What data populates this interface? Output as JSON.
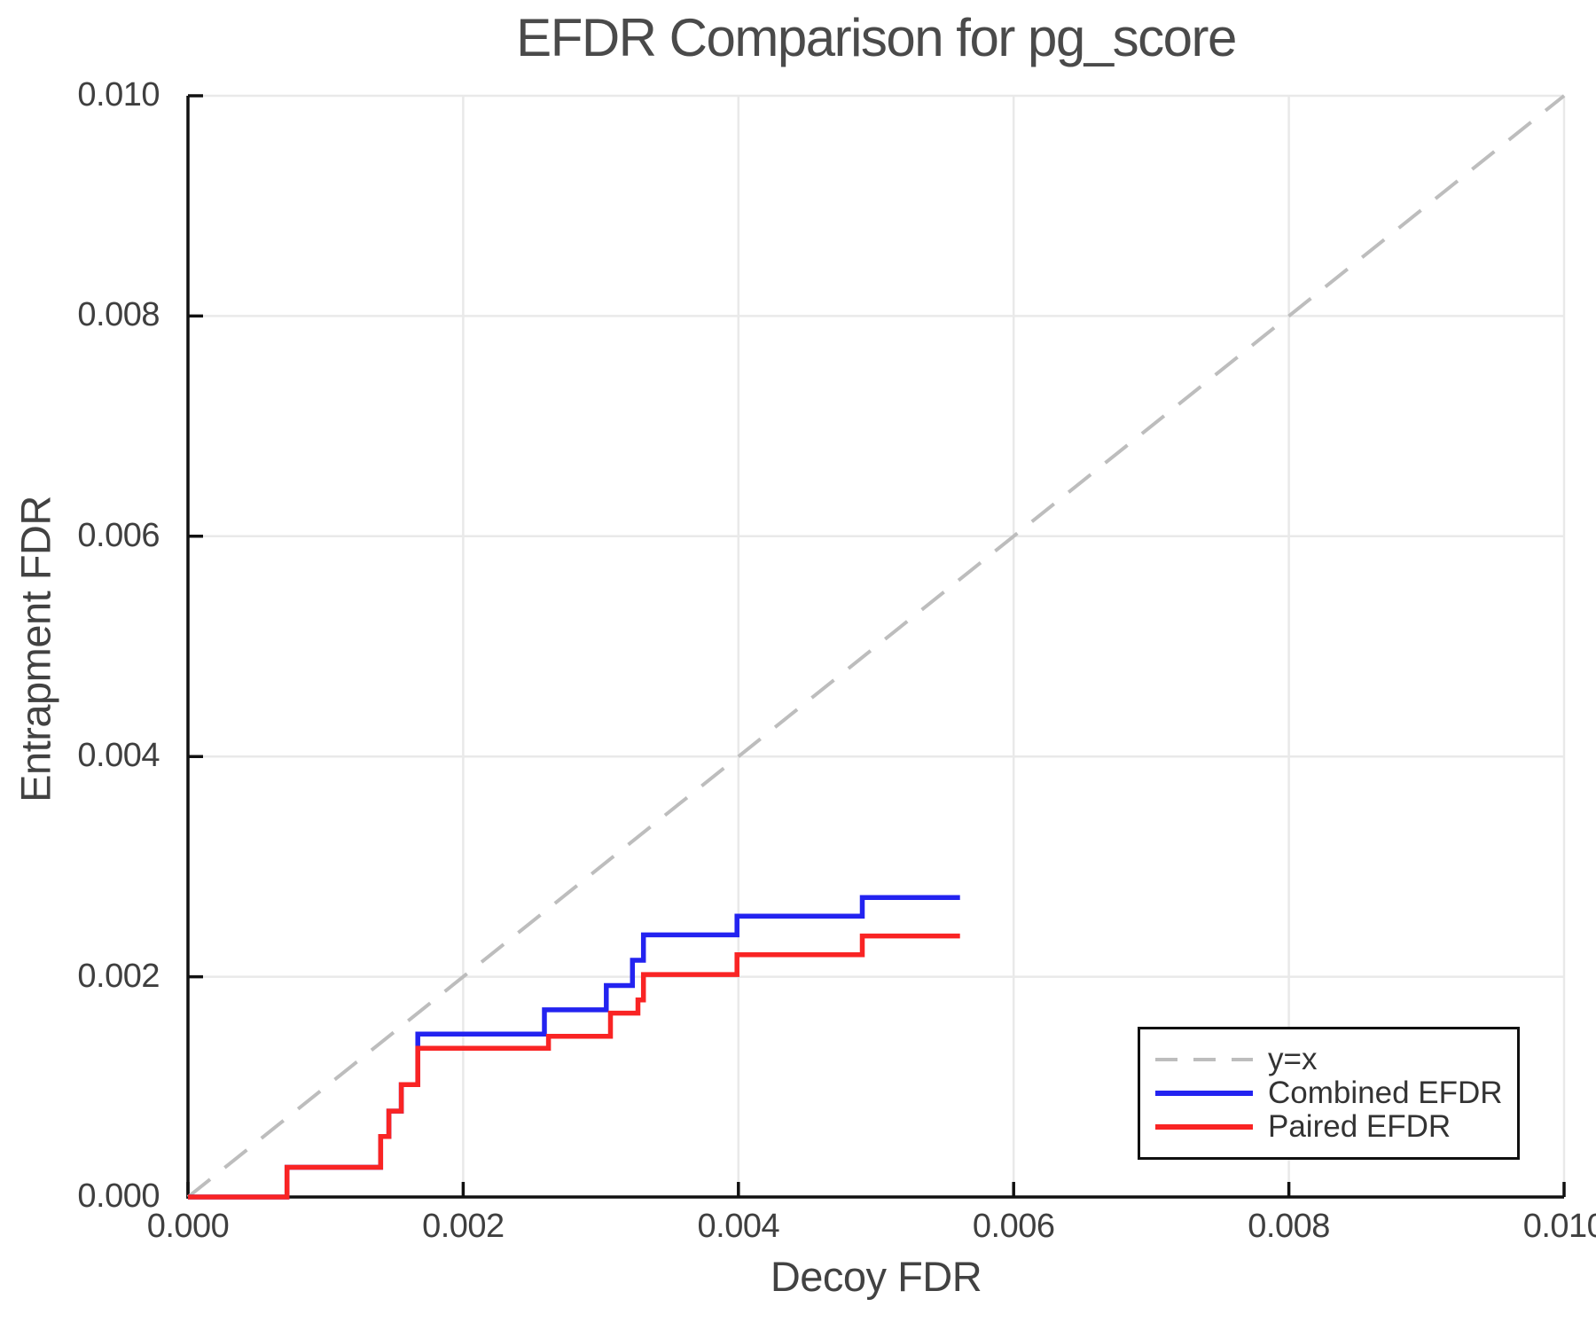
{
  "style": {
    "background": "#ffffff",
    "spine_color": "#111111",
    "grid_color": "#e9e9e9",
    "text_color": "#3f3f3f",
    "title_color": "#4a4a4a",
    "combined_color": "#2323f0",
    "paired_color": "#f92424",
    "identity_color": "#bdbdbd"
  },
  "chart_data": {
    "type": "line",
    "title": "EFDR Comparison for pg_score",
    "xlabel": "Decoy FDR",
    "ylabel": "Entrapment FDR",
    "xlim": [
      0,
      0.01
    ],
    "ylim": [
      0,
      0.01
    ],
    "xticks": [
      0,
      0.002,
      0.004,
      0.006,
      0.008,
      0.01
    ],
    "yticks": [
      0,
      0.002,
      0.004,
      0.006,
      0.008,
      0.01
    ],
    "xtick_labels": [
      "0.000",
      "0.002",
      "0.004",
      "0.006",
      "0.008",
      "0.010"
    ],
    "ytick_labels": [
      "0.000",
      "0.002",
      "0.004",
      "0.006",
      "0.008",
      "0.010"
    ],
    "grid": true,
    "legend_position": "lower-right",
    "series": [
      {
        "name": "y=x",
        "style": "dashed",
        "color": "#bdbdbd",
        "width": 4,
        "points": [
          [
            0,
            0
          ],
          [
            0.01,
            0.01
          ]
        ]
      },
      {
        "name": "Combined EFDR",
        "style": "solid",
        "color": "#2323f0",
        "width": 5.5,
        "points": [
          [
            0,
            0
          ],
          [
            0.00072,
            0
          ],
          [
            0.00072,
            0.00027
          ],
          [
            0.0014,
            0.00027
          ],
          [
            0.0014,
            0.00055
          ],
          [
            0.00146,
            0.00055
          ],
          [
            0.00146,
            0.00078
          ],
          [
            0.00155,
            0.00078
          ],
          [
            0.00155,
            0.00102
          ],
          [
            0.00167,
            0.00102
          ],
          [
            0.00167,
            0.00148
          ],
          [
            0.00259,
            0.00148
          ],
          [
            0.00259,
            0.0017
          ],
          [
            0.00304,
            0.0017
          ],
          [
            0.00304,
            0.00192
          ],
          [
            0.00323,
            0.00192
          ],
          [
            0.00323,
            0.00215
          ],
          [
            0.00331,
            0.00215
          ],
          [
            0.00331,
            0.00238
          ],
          [
            0.00399,
            0.00238
          ],
          [
            0.00399,
            0.00255
          ],
          [
            0.0049,
            0.00255
          ],
          [
            0.0049,
            0.00272
          ],
          [
            0.00561,
            0.00272
          ]
        ]
      },
      {
        "name": "Paired EFDR",
        "style": "solid",
        "color": "#f92424",
        "width": 5.5,
        "points": [
          [
            0,
            0
          ],
          [
            0.00072,
            0
          ],
          [
            0.00072,
            0.00027
          ],
          [
            0.0014,
            0.00027
          ],
          [
            0.0014,
            0.00055
          ],
          [
            0.00146,
            0.00055
          ],
          [
            0.00146,
            0.00078
          ],
          [
            0.00155,
            0.00078
          ],
          [
            0.00155,
            0.00102
          ],
          [
            0.00167,
            0.00102
          ],
          [
            0.00167,
            0.00135
          ],
          [
            0.00262,
            0.00135
          ],
          [
            0.00262,
            0.00146
          ],
          [
            0.00307,
            0.00146
          ],
          [
            0.00307,
            0.00167
          ],
          [
            0.00327,
            0.00167
          ],
          [
            0.00327,
            0.00179
          ],
          [
            0.00331,
            0.00179
          ],
          [
            0.00331,
            0.00202
          ],
          [
            0.00399,
            0.00202
          ],
          [
            0.00399,
            0.0022
          ],
          [
            0.0049,
            0.0022
          ],
          [
            0.0049,
            0.00237
          ],
          [
            0.00561,
            0.00237
          ]
        ]
      }
    ]
  }
}
